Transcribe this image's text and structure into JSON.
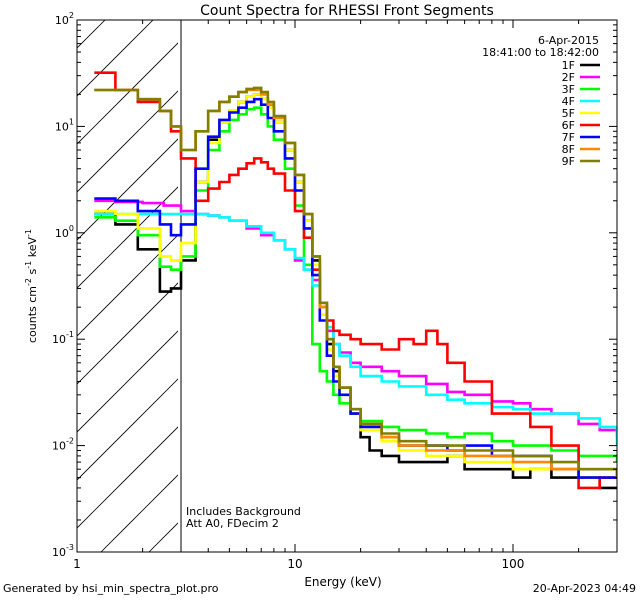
{
  "chart_data": {
    "type": "line",
    "title": "Count Spectra for RHESSI Front Segments",
    "xlabel": "Energy (keV)",
    "ylabel": "counts cm",
    "ylabel_parts": [
      "counts cm",
      "-2",
      " s",
      "-1",
      " keV",
      "-1"
    ],
    "x_scale": "log",
    "y_scale": "log",
    "xlim": [
      1,
      300
    ],
    "ylim": [
      0.001,
      100
    ],
    "x_ticks": [
      {
        "value": 10,
        "label": "10"
      },
      {
        "value": 100,
        "label": "100"
      }
    ],
    "y_ticks": [
      {
        "value": 0.001,
        "base": "10",
        "exp": "-3"
      },
      {
        "value": 0.01,
        "base": "10",
        "exp": "-2"
      },
      {
        "value": 0.1,
        "base": "10",
        "exp": "-1"
      },
      {
        "value": 1,
        "base": "10",
        "exp": "0"
      },
      {
        "value": 10,
        "base": "10",
        "exp": "1"
      },
      {
        "value": 100,
        "base": "10",
        "exp": "2"
      }
    ],
    "x_min_label": "1",
    "attenuator_cutoff_keV": 3,
    "date": "6-Apr-2015",
    "time_range": "18:41:00 to 18:42:00",
    "annotation_lines": [
      "Includes Background",
      "Att A0, FDecim 2"
    ],
    "series": [
      {
        "name": "1F",
        "color": "#000000",
        "x": [
          1.2,
          1.5,
          1.9,
          2.4,
          2.7,
          3.0,
          3.5,
          4.0,
          4.5,
          5.0,
          5.5,
          6.0,
          6.5,
          7.0,
          7.5,
          8.0,
          9.0,
          10.0,
          11.0,
          12.0,
          13.0,
          14.0,
          15.0,
          16.0,
          18.0,
          20.0,
          22.0,
          25.0,
          30.0,
          40.0,
          50.0,
          60.0,
          80.0,
          100.0,
          120.0,
          150.0,
          200.0,
          250.0,
          300.0
        ],
        "y": [
          1.5,
          1.2,
          0.7,
          0.28,
          0.3,
          0.55,
          3.0,
          7.5,
          11.0,
          14.0,
          17.0,
          19.0,
          20.0,
          18.0,
          15.0,
          11.0,
          6.0,
          3.0,
          1.3,
          0.55,
          0.2,
          0.09,
          0.05,
          0.035,
          0.02,
          0.012,
          0.009,
          0.008,
          0.007,
          0.007,
          0.008,
          0.006,
          0.006,
          0.005,
          0.006,
          0.005,
          0.005,
          0.004,
          0.004
        ]
      },
      {
        "name": "2F",
        "color": "#ff00ff",
        "x": [
          1.2,
          1.5,
          2.0,
          2.5,
          3.0,
          3.5,
          4.0,
          4.5,
          5.0,
          6.0,
          7.0,
          8.0,
          9.0,
          10.0,
          11.0,
          12.0,
          13.0,
          14.0,
          15.0,
          16.0,
          18.0,
          20.0,
          25.0,
          30.0,
          40.0,
          50.0,
          60.0,
          80.0,
          100.0,
          120.0,
          150.0,
          200.0,
          250.0,
          300.0
        ],
        "y": [
          2.0,
          1.95,
          1.9,
          1.8,
          1.6,
          1.5,
          1.45,
          1.4,
          1.3,
          1.1,
          0.95,
          0.85,
          0.7,
          0.55,
          0.45,
          0.36,
          0.2,
          0.12,
          0.09,
          0.075,
          0.06,
          0.055,
          0.05,
          0.045,
          0.038,
          0.032,
          0.03,
          0.026,
          0.025,
          0.022,
          0.02,
          0.016,
          0.014,
          0.012
        ]
      },
      {
        "name": "3F",
        "color": "#00ff00",
        "x": [
          1.2,
          1.5,
          1.9,
          2.4,
          2.7,
          3.0,
          3.5,
          4.0,
          4.5,
          5.0,
          5.5,
          6.0,
          6.5,
          7.0,
          7.5,
          8.0,
          9.0,
          10.0,
          11.0,
          12.0,
          13.0,
          14.0,
          15.0,
          16.0,
          18.0,
          20.0,
          25.0,
          30.0,
          40.0,
          50.0,
          60.0,
          80.0,
          100.0,
          150.0,
          200.0,
          300.0
        ],
        "y": [
          1.4,
          1.3,
          0.95,
          0.48,
          0.45,
          0.6,
          2.5,
          6.0,
          9.0,
          11.5,
          13.0,
          14.5,
          15.0,
          13.0,
          10.0,
          7.5,
          4.0,
          1.8,
          0.5,
          0.09,
          0.05,
          0.04,
          0.03,
          0.025,
          0.02,
          0.017,
          0.015,
          0.014,
          0.013,
          0.012,
          0.013,
          0.011,
          0.01,
          0.009,
          0.008,
          0.007
        ]
      },
      {
        "name": "4F",
        "color": "#00ffff",
        "x": [
          1.2,
          1.5,
          2.0,
          2.5,
          3.0,
          3.5,
          4.0,
          4.5,
          5.0,
          6.0,
          7.0,
          8.0,
          9.0,
          10.0,
          11.0,
          12.0,
          13.0,
          14.0,
          15.0,
          16.0,
          18.0,
          20.0,
          25.0,
          30.0,
          40.0,
          50.0,
          60.0,
          80.0,
          100.0,
          120.0,
          150.0,
          200.0,
          250.0,
          300.0
        ],
        "y": [
          1.5,
          1.5,
          1.5,
          1.5,
          1.5,
          1.5,
          1.45,
          1.4,
          1.3,
          1.15,
          1.0,
          0.85,
          0.7,
          0.58,
          0.45,
          0.32,
          0.2,
          0.13,
          0.09,
          0.07,
          0.055,
          0.045,
          0.04,
          0.036,
          0.03,
          0.027,
          0.025,
          0.023,
          0.022,
          0.02,
          0.02,
          0.018,
          0.015,
          0.01
        ]
      },
      {
        "name": "5F",
        "color": "#ffff00",
        "x": [
          1.2,
          1.5,
          1.9,
          2.4,
          2.7,
          3.0,
          3.5,
          4.0,
          4.5,
          5.0,
          5.5,
          6.0,
          6.5,
          7.0,
          7.5,
          8.0,
          9.0,
          10.0,
          11.0,
          12.0,
          13.0,
          14.0,
          15.0,
          16.0,
          18.0,
          20.0,
          25.0,
          30.0,
          40.0,
          50.0,
          60.0,
          80.0,
          100.0,
          150.0,
          200.0,
          300.0
        ],
        "y": [
          1.6,
          1.5,
          1.1,
          0.6,
          0.55,
          0.8,
          3.0,
          7.0,
          11.0,
          14.0,
          17.0,
          19.0,
          20.0,
          18.0,
          15.0,
          11.0,
          6.0,
          3.0,
          1.3,
          0.5,
          0.17,
          0.08,
          0.045,
          0.03,
          0.02,
          0.014,
          0.011,
          0.009,
          0.008,
          0.008,
          0.007,
          0.007,
          0.006,
          0.006,
          0.005,
          0.005
        ]
      },
      {
        "name": "6F",
        "color": "#ff0000",
        "x": [
          1.2,
          1.5,
          1.9,
          2.4,
          2.7,
          3.0,
          3.5,
          4.0,
          4.5,
          5.0,
          5.5,
          6.0,
          6.5,
          7.0,
          7.5,
          8.0,
          9.0,
          10.0,
          11.0,
          12.0,
          13.0,
          14.0,
          15.0,
          16.0,
          18.0,
          20.0,
          25.0,
          30.0,
          35.0,
          40.0,
          45.0,
          50.0,
          60.0,
          80.0,
          100.0,
          120.0,
          150.0,
          200.0,
          250.0,
          300.0
        ],
        "y": [
          32.0,
          22.0,
          17.0,
          14.0,
          9.0,
          5.0,
          2.0,
          2.6,
          3.0,
          3.5,
          4.0,
          4.5,
          5.0,
          4.6,
          4.0,
          3.6,
          2.5,
          1.6,
          0.9,
          0.45,
          0.22,
          0.15,
          0.12,
          0.11,
          0.1,
          0.09,
          0.08,
          0.1,
          0.09,
          0.12,
          0.09,
          0.06,
          0.04,
          0.02,
          0.02,
          0.015,
          0.01,
          0.004,
          0.005,
          0.006
        ]
      },
      {
        "name": "7F",
        "color": "#0000ff",
        "x": [
          1.2,
          1.5,
          1.9,
          2.4,
          2.7,
          3.0,
          3.5,
          4.0,
          4.5,
          5.0,
          5.5,
          6.0,
          6.5,
          7.0,
          7.5,
          8.0,
          9.0,
          10.0,
          11.0,
          12.0,
          13.0,
          14.0,
          15.0,
          16.0,
          18.0,
          20.0,
          25.0,
          30.0,
          40.0,
          50.0,
          60.0,
          80.0,
          100.0,
          150.0,
          200.0,
          300.0
        ],
        "y": [
          2.1,
          2.0,
          1.6,
          1.2,
          0.95,
          1.2,
          4.0,
          8.0,
          11.5,
          13.5,
          15.0,
          17.0,
          18.0,
          16.0,
          12.0,
          9.0,
          5.0,
          2.5,
          1.1,
          0.4,
          0.15,
          0.07,
          0.04,
          0.03,
          0.02,
          0.015,
          0.012,
          0.01,
          0.01,
          0.009,
          0.01,
          0.008,
          0.008,
          0.006,
          0.005,
          0.005
        ]
      },
      {
        "name": "8F",
        "color": "#ff8800",
        "x": [
          1.2,
          1.5,
          1.9,
          2.4,
          2.7,
          3.0,
          3.5,
          4.0,
          4.5,
          5.0,
          5.5,
          6.0,
          6.5,
          7.0,
          7.5,
          8.0,
          9.0,
          10.0,
          11.0,
          12.0,
          13.0,
          14.0,
          15.0,
          16.0,
          18.0,
          20.0,
          25.0,
          30.0,
          40.0,
          50.0,
          60.0,
          80.0,
          100.0,
          150.0,
          200.0,
          300.0
        ],
        "y": [
          22.0,
          22.0,
          18.0,
          14.0,
          10.0,
          6.0,
          9.0,
          14.0,
          17.0,
          19.0,
          21.0,
          22.0,
          22.0,
          20.0,
          16.0,
          12.0,
          7.0,
          3.5,
          1.5,
          0.6,
          0.2,
          0.1,
          0.055,
          0.035,
          0.022,
          0.016,
          0.012,
          0.01,
          0.009,
          0.009,
          0.008,
          0.008,
          0.007,
          0.006,
          0.006,
          0.005
        ]
      },
      {
        "name": "9F",
        "color": "#808000",
        "x": [
          1.2,
          1.5,
          1.9,
          2.4,
          2.7,
          3.0,
          3.5,
          4.0,
          4.5,
          5.0,
          5.5,
          6.0,
          6.5,
          7.0,
          7.5,
          8.0,
          9.0,
          10.0,
          11.0,
          12.0,
          13.0,
          14.0,
          15.0,
          16.0,
          18.0,
          20.0,
          25.0,
          30.0,
          40.0,
          50.0,
          60.0,
          80.0,
          100.0,
          150.0,
          200.0,
          300.0
        ],
        "y": [
          22.0,
          22.0,
          18.0,
          14.0,
          10.0,
          6.0,
          9.0,
          14.0,
          17.0,
          19.0,
          21.0,
          22.5,
          23.0,
          21.0,
          17.0,
          12.5,
          7.0,
          3.5,
          1.5,
          0.6,
          0.22,
          0.1,
          0.055,
          0.035,
          0.022,
          0.016,
          0.013,
          0.011,
          0.01,
          0.01,
          0.009,
          0.009,
          0.008,
          0.007,
          0.006,
          0.005
        ]
      }
    ]
  },
  "footer": {
    "generated_by": "Generated by hsi_min_spectra_plot.pro",
    "timestamp": "20-Apr-2023 04:49"
  }
}
